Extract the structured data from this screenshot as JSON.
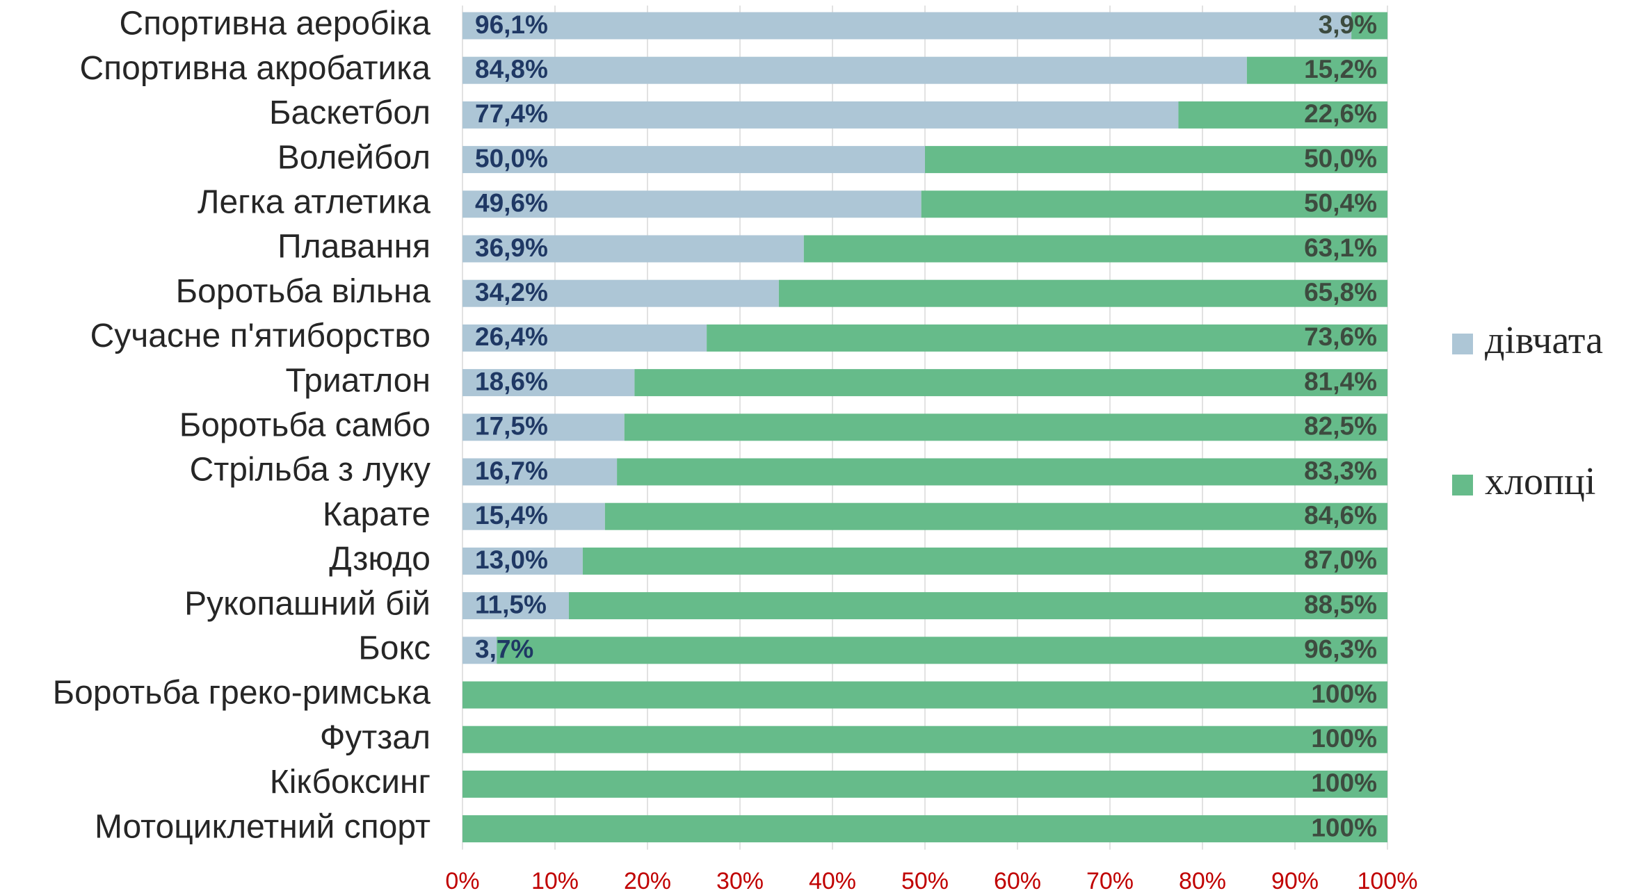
{
  "chart_data": {
    "type": "stacked_barh",
    "categories": [
      "Спортивна аеробіка",
      "Спортивна акробатика",
      "Баскетбол",
      "Волейбол",
      "Легка атлетика",
      "Плавання",
      "Боротьба вільна",
      "Сучасне п'ятиборство",
      "Триатлон",
      "Боротьба самбо",
      "Стрільба з луку",
      "Карате",
      "Дзюдо",
      "Рукопашний бій",
      "Бокс",
      "Боротьба греко-римська",
      "Футзал",
      "Кікбоксинг",
      "Мотоциклетний спорт"
    ],
    "series": [
      {
        "name": "дівчата",
        "color": "#adc6d6",
        "values": [
          96.1,
          84.8,
          77.4,
          50.0,
          49.6,
          36.9,
          34.2,
          26.4,
          18.6,
          17.5,
          16.7,
          15.4,
          13.0,
          11.5,
          3.7,
          0,
          0,
          0,
          0
        ],
        "value_labels": [
          "96,1%",
          "84,8%",
          "77,4%",
          "50,0%",
          "49,6%",
          "36,9%",
          "34,2%",
          "26,4%",
          "18,6%",
          "17,5%",
          "16,7%",
          "15,4%",
          "13,0%",
          "11,5%",
          "3,7%",
          null,
          null,
          null,
          null
        ]
      },
      {
        "name": "хлопці",
        "color": "#66bb8a",
        "values": [
          3.9,
          15.2,
          22.6,
          50.0,
          50.4,
          63.1,
          65.8,
          73.6,
          81.4,
          82.5,
          83.3,
          84.6,
          87.0,
          88.5,
          96.3,
          100,
          100,
          100,
          100
        ],
        "value_labels": [
          "3,9%",
          "15,2%",
          "22,6%",
          "50,0%",
          "50,4%",
          "63,1%",
          "65,8%",
          "73,6%",
          "81,4%",
          "82,5%",
          "83,3%",
          "84,6%",
          "87,0%",
          "88,5%",
          "96,3%",
          "100%",
          "100%",
          "100%",
          "100%"
        ]
      }
    ],
    "xlim": [
      0,
      100
    ],
    "xticks": [
      {
        "value": 0,
        "label": "0%"
      },
      {
        "value": 10,
        "label": "10%"
      },
      {
        "value": 20,
        "label": "20%"
      },
      {
        "value": 30,
        "label": "30%"
      },
      {
        "value": 40,
        "label": "40%"
      },
      {
        "value": 50,
        "label": "50%"
      },
      {
        "value": 60,
        "label": "60%"
      },
      {
        "value": 70,
        "label": "70%"
      },
      {
        "value": 80,
        "label": "80%"
      },
      {
        "value": 90,
        "label": "90%"
      },
      {
        "value": 100,
        "label": "100%"
      }
    ],
    "grid": true,
    "legend": "right"
  }
}
